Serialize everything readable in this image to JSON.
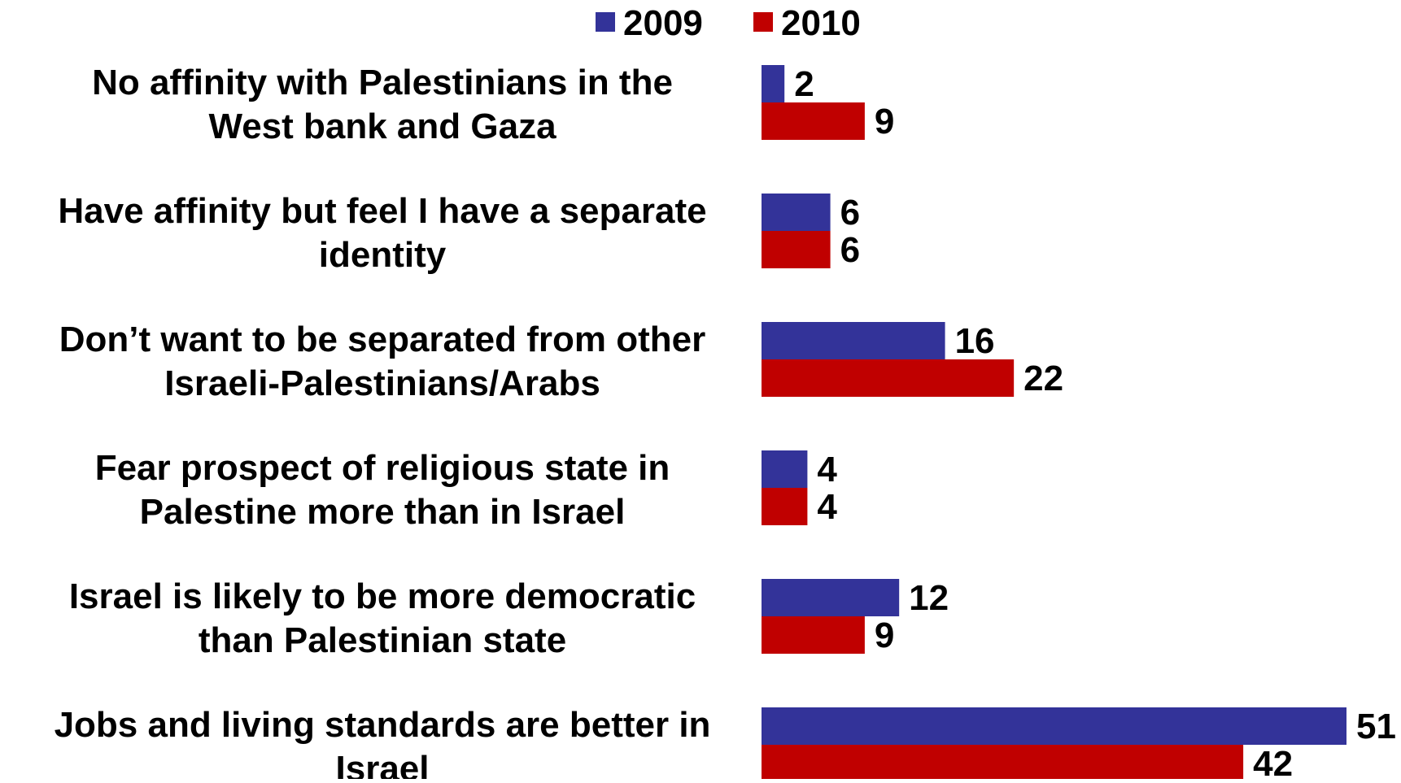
{
  "chart_data": {
    "type": "bar",
    "orientation": "horizontal",
    "categories": [
      [
        "No affinity with Palestinians in the",
        "West bank and Gaza"
      ],
      [
        "Have affinity but feel I have a separate",
        "identity"
      ],
      [
        "Don’t want to be separated from other",
        "Israeli-Palestinians/Arabs"
      ],
      [
        "Fear prospect of religious state in",
        "Palestine more than in Israel"
      ],
      [
        "Israel is likely to be more democratic",
        "than Palestinian state"
      ],
      [
        "Jobs and living standards are better in",
        "Israel"
      ]
    ],
    "series": [
      {
        "name": "2009",
        "color": "#333399",
        "values": [
          2,
          6,
          16,
          4,
          12,
          51
        ]
      },
      {
        "name": "2010",
        "color": "#c00000",
        "values": [
          9,
          6,
          22,
          4,
          9,
          42
        ]
      }
    ],
    "xlim": [
      0,
      51
    ],
    "legend_position": "top-center",
    "grid": false,
    "data_labels": true
  }
}
